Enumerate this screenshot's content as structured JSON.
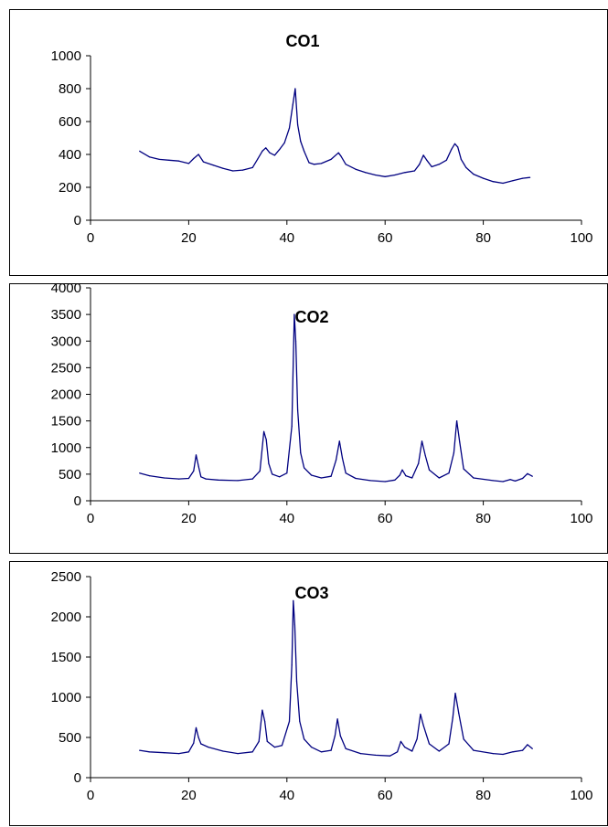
{
  "chart_data": [
    {
      "type": "line",
      "title": "CO1",
      "xlabel": "",
      "ylabel": "",
      "xlim": [
        0,
        100
      ],
      "ylim": [
        0,
        1000
      ],
      "xticks": [
        0,
        20,
        40,
        60,
        80,
        100
      ],
      "yticks": [
        0,
        200,
        400,
        600,
        800,
        1000
      ],
      "grid": false,
      "line_color": "#000080",
      "series": [
        {
          "x": [
            10,
            12,
            14,
            16,
            18,
            20,
            21,
            22,
            23,
            25,
            27,
            29,
            31,
            33,
            34,
            35,
            35.7,
            36.5,
            37.5,
            38.5,
            39.5,
            40.5,
            41.2,
            41.7,
            42.2,
            42.8,
            43.5,
            44.5,
            45.5,
            47,
            49,
            50.5,
            51,
            52,
            54,
            56,
            58,
            60,
            62,
            64,
            66,
            67,
            67.8,
            68.5,
            69.5,
            71,
            72.5,
            73.5,
            74.2,
            74.8,
            75.5,
            76.5,
            78,
            80,
            82,
            84,
            86,
            88,
            89.5
          ],
          "y": [
            420,
            385,
            370,
            365,
            360,
            345,
            375,
            400,
            355,
            335,
            315,
            300,
            305,
            320,
            370,
            420,
            440,
            410,
            395,
            430,
            470,
            560,
            700,
            800,
            580,
            480,
            420,
            350,
            340,
            345,
            370,
            410,
            390,
            340,
            310,
            290,
            275,
            265,
            275,
            290,
            300,
            340,
            395,
            365,
            325,
            340,
            365,
            430,
            465,
            445,
            370,
            320,
            280,
            255,
            235,
            225,
            240,
            255,
            260
          ]
        }
      ]
    },
    {
      "type": "line",
      "title": "CO2",
      "xlabel": "",
      "ylabel": "",
      "xlim": [
        0,
        100
      ],
      "ylim": [
        0,
        4000
      ],
      "xticks": [
        0,
        20,
        40,
        60,
        80,
        100
      ],
      "yticks": [
        0,
        500,
        1000,
        1500,
        2000,
        2500,
        3000,
        3500,
        4000
      ],
      "grid": false,
      "line_color": "#000080",
      "series": [
        {
          "x": [
            10,
            12,
            15,
            18,
            20,
            21,
            21.5,
            22,
            22.5,
            23.5,
            26,
            30,
            33,
            34.5,
            35.3,
            35.8,
            36.3,
            37,
            38.5,
            40,
            41,
            41.5,
            41.8,
            42.2,
            42.8,
            43.5,
            45,
            47,
            49,
            50,
            50.7,
            51.3,
            52,
            54,
            57,
            60,
            62,
            63,
            63.5,
            64.2,
            65.5,
            66.8,
            67.5,
            68.2,
            69,
            71,
            73,
            74,
            74.6,
            75.2,
            76,
            78,
            82,
            84,
            85.5,
            86.5,
            88,
            89,
            90
          ],
          "y": [
            520,
            470,
            430,
            410,
            420,
            560,
            860,
            650,
            450,
            410,
            390,
            380,
            410,
            560,
            1300,
            1150,
            700,
            500,
            450,
            520,
            1400,
            3500,
            3000,
            1700,
            900,
            620,
            480,
            430,
            460,
            760,
            1120,
            800,
            520,
            420,
            380,
            360,
            390,
            480,
            580,
            470,
            430,
            700,
            1120,
            850,
            580,
            430,
            520,
            900,
            1500,
            1100,
            600,
            430,
            380,
            360,
            400,
            370,
            420,
            510,
            460
          ]
        }
      ]
    },
    {
      "type": "line",
      "title": "CO3",
      "xlabel": "",
      "ylabel": "",
      "xlim": [
        0,
        100
      ],
      "ylim": [
        0,
        2500
      ],
      "xticks": [
        0,
        20,
        40,
        60,
        80,
        100
      ],
      "yticks": [
        0,
        500,
        1000,
        1500,
        2000,
        2500
      ],
      "grid": false,
      "line_color": "#000080",
      "series": [
        {
          "x": [
            10,
            12,
            15,
            18,
            20,
            21,
            21.5,
            22,
            22.5,
            24,
            27,
            30,
            33,
            34.3,
            35,
            35.5,
            36,
            37.5,
            39,
            40.5,
            41,
            41.3,
            41.6,
            42,
            42.6,
            43.5,
            45,
            47,
            49,
            49.8,
            50.3,
            50.9,
            52,
            55,
            58,
            61,
            62.5,
            63.2,
            64,
            65.5,
            66.5,
            67.2,
            67.8,
            69,
            71,
            73,
            73.8,
            74.3,
            75,
            76,
            78,
            82,
            84,
            86,
            88,
            89,
            90
          ],
          "y": [
            340,
            320,
            310,
            300,
            320,
            430,
            620,
            500,
            420,
            380,
            330,
            300,
            320,
            450,
            840,
            700,
            450,
            380,
            400,
            700,
            1400,
            2200,
            1900,
            1200,
            700,
            480,
            380,
            320,
            340,
            520,
            730,
            520,
            360,
            300,
            280,
            270,
            320,
            450,
            380,
            330,
            480,
            790,
            650,
            420,
            330,
            420,
            750,
            1050,
            800,
            480,
            340,
            300,
            290,
            320,
            340,
            410,
            360
          ]
        }
      ]
    }
  ]
}
